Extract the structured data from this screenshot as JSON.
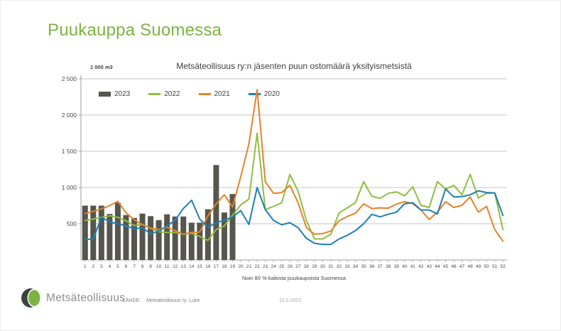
{
  "slide": {
    "title": "Puukauppa Suomessa",
    "footer": {
      "brand": "Metsäteollisuus",
      "source_label": "LÄHDE:",
      "source_value": "Metsäteollisuus ry; Luke",
      "date": "15.5.2023"
    }
  },
  "chart_data": {
    "type": "bar+line",
    "title": "Metsäteollisuus ry:n jäsenten puun ostomäärä yksityismetsistä",
    "unit_label": "1 000 m3",
    "caption": "Noin 80 % kaikista puukaupoista Suomessa",
    "xlabel": "",
    "ylabel": "1 000 m3",
    "ylim": [
      0,
      2500
    ],
    "grid": true,
    "legend_position": "top-left",
    "x": [
      1,
      2,
      3,
      4,
      5,
      6,
      7,
      8,
      9,
      10,
      11,
      12,
      13,
      14,
      15,
      16,
      17,
      18,
      19,
      20,
      21,
      22,
      23,
      24,
      25,
      26,
      27,
      28,
      29,
      30,
      31,
      32,
      33,
      34,
      35,
      36,
      37,
      38,
      39,
      40,
      41,
      42,
      43,
      44,
      45,
      46,
      47,
      48,
      49,
      50,
      51,
      52
    ],
    "y_ticks": [
      {
        "label": "500",
        "value": 500
      },
      {
        "label": "1 000",
        "value": 1000
      },
      {
        "label": "1 500",
        "value": 1500
      },
      {
        "label": "2 000",
        "value": 2000
      },
      {
        "label": "2 500",
        "value": 2500
      }
    ],
    "colors": {
      "grid": "#c6c6c6",
      "axis": "#9b9b9b",
      "tick_text": "#4a4a4a",
      "title_green": "#7cb444"
    },
    "series": [
      {
        "name": "2023",
        "type": "bar",
        "color": "#56564e",
        "values": [
          750,
          750,
          750,
          635,
          790,
          620,
          580,
          640,
          605,
          550,
          630,
          600,
          600,
          515,
          515,
          700,
          1310,
          655,
          910
        ]
      },
      {
        "name": "2022",
        "type": "line",
        "color": "#8fbe3f",
        "values": [
          545,
          565,
          590,
          610,
          590,
          540,
          475,
          490,
          435,
          390,
          380,
          380,
          355,
          370,
          325,
          270,
          420,
          470,
          620,
          760,
          840,
          1750,
          695,
          740,
          790,
          1180,
          950,
          550,
          290,
          290,
          355,
          650,
          720,
          790,
          1080,
          880,
          850,
          920,
          940,
          885,
          1010,
          755,
          725,
          1080,
          980,
          1030,
          900,
          1180,
          855,
          920,
          925,
          420
        ]
      },
      {
        "name": "2021",
        "type": "line",
        "color": "#e4822b",
        "values": [
          640,
          670,
          705,
          750,
          810,
          650,
          555,
          490,
          440,
          420,
          450,
          405,
          355,
          380,
          385,
          610,
          775,
          900,
          730,
          1150,
          1600,
          2350,
          1080,
          920,
          930,
          1030,
          790,
          450,
          355,
          365,
          400,
          540,
          600,
          645,
          775,
          710,
          720,
          715,
          770,
          805,
          775,
          690,
          560,
          660,
          805,
          725,
          755,
          870,
          660,
          740,
          420,
          260
        ]
      },
      {
        "name": "2020",
        "type": "line",
        "color": "#1e7fb4",
        "values": [
          285,
          285,
          590,
          525,
          500,
          470,
          430,
          445,
          360,
          400,
          470,
          550,
          710,
          825,
          565,
          450,
          515,
          550,
          595,
          680,
          490,
          1000,
          695,
          545,
          485,
          515,
          445,
          300,
          230,
          215,
          215,
          290,
          340,
          405,
          500,
          630,
          595,
          630,
          660,
          775,
          790,
          690,
          690,
          635,
          980,
          870,
          875,
          900,
          955,
          930,
          925,
          615
        ]
      }
    ]
  }
}
